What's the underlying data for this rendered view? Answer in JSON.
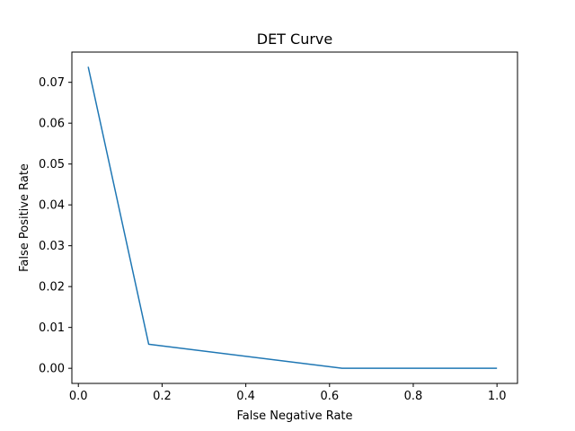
{
  "chart_data": {
    "type": "line",
    "title": "DET Curve",
    "xlabel": "False Negative Rate",
    "ylabel": "False Positive Rate",
    "xlim": [
      -0.0155,
      1.049
    ],
    "ylim": [
      -0.0037,
      0.0774
    ],
    "xticks": [
      0.0,
      0.2,
      0.4,
      0.6,
      0.8,
      1.0
    ],
    "xtick_labels": [
      "0.0",
      "0.2",
      "0.4",
      "0.6",
      "0.8",
      "1.0"
    ],
    "yticks": [
      0.0,
      0.01,
      0.02,
      0.03,
      0.04,
      0.05,
      0.06,
      0.07
    ],
    "ytick_labels": [
      "0.00",
      "0.01",
      "0.02",
      "0.03",
      "0.04",
      "0.05",
      "0.06",
      "0.07"
    ],
    "grid": false,
    "series": [
      {
        "color": "#1f77b4",
        "x": [
          0.0235,
          0.168,
          0.63,
          1.0
        ],
        "y": [
          0.0738,
          0.0059,
          0.0,
          0.0
        ]
      }
    ]
  }
}
